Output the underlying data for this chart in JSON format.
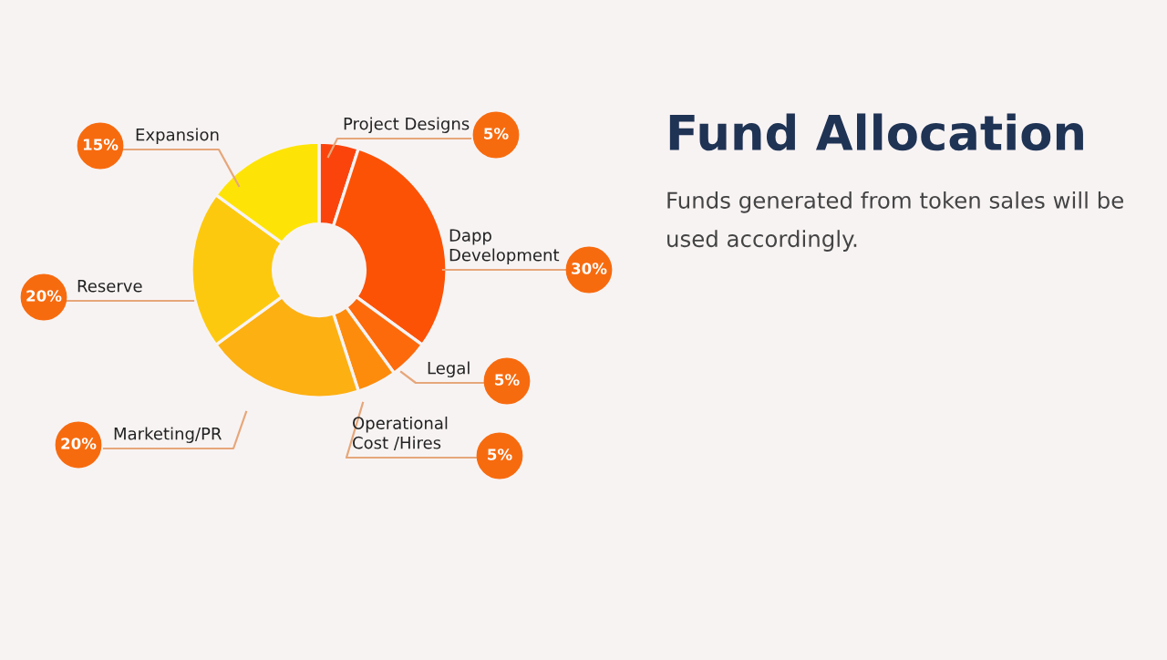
{
  "chart_data": {
    "type": "donut",
    "title": "Fund Allocation",
    "subtitle": "Funds generated from token sales will be used accordingly.",
    "categories": [
      "Project Designs",
      "Dapp Development",
      "Legal",
      "Operational Cost /Hires",
      "Marketing/PR",
      "Reserve",
      "Expansion"
    ],
    "values": [
      5,
      30,
      5,
      5,
      20,
      20,
      15
    ],
    "colors": [
      "#fb440c",
      "#fc5206",
      "#fc6a0c",
      "#fd8c0c",
      "#fdb012",
      "#fdc90e",
      "#fee406"
    ],
    "value_labels": [
      "5%",
      "30%",
      "5%",
      "5%",
      "20%",
      "20%",
      "15%"
    ]
  }
}
